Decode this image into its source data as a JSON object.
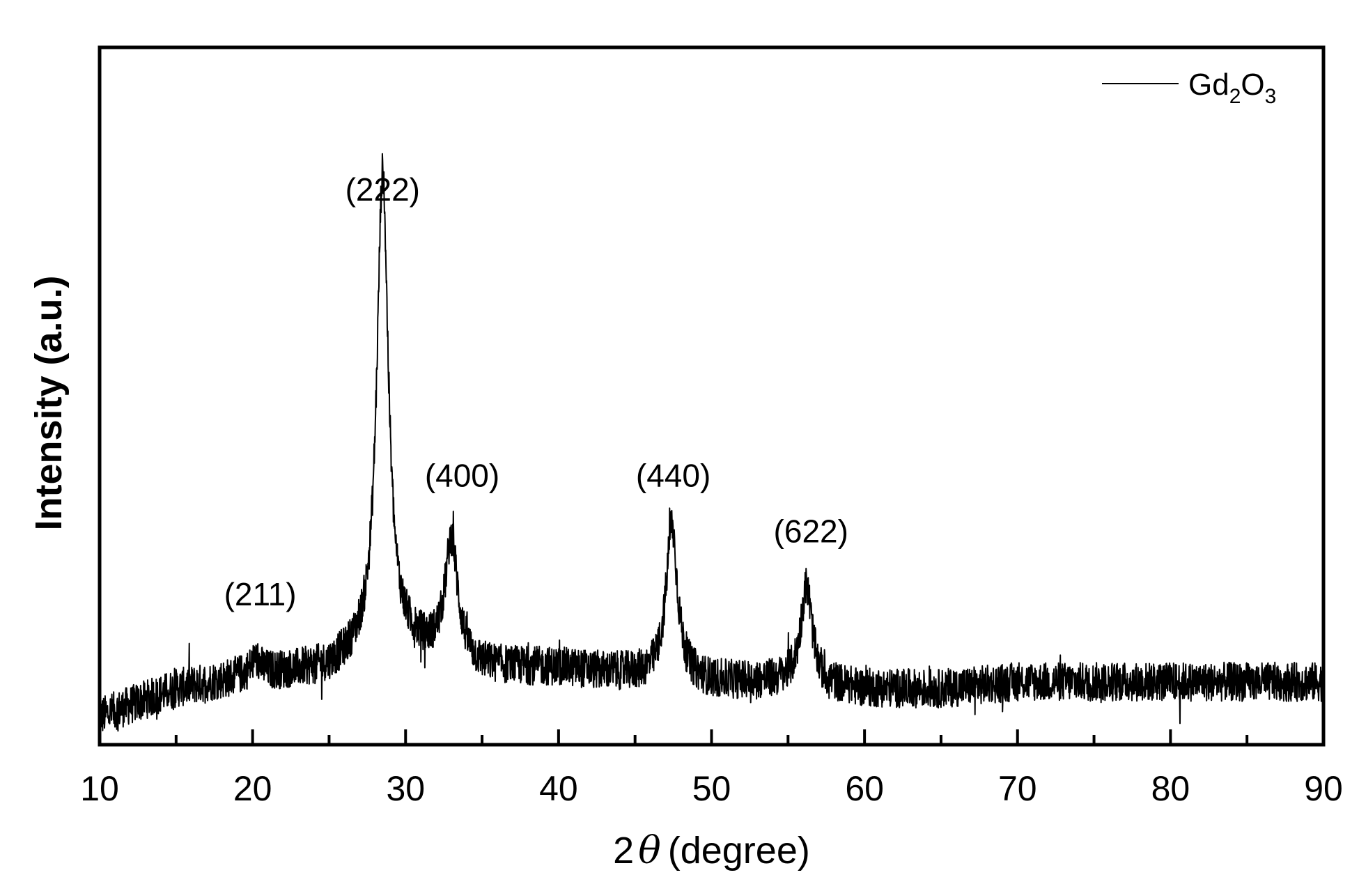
{
  "chart_data": {
    "type": "line",
    "xlabel_prefix": "2",
    "xlabel_symbol": "θ",
    "xlabel_suffix": "(degree)",
    "ylabel": "Intensity (a.u.)",
    "xlim": [
      10,
      90
    ],
    "ylim": [
      0,
      100
    ],
    "x_ticks": [
      "10",
      "20",
      "30",
      "40",
      "50",
      "60",
      "70",
      "80",
      "90"
    ],
    "minor_tick_step": 5,
    "y_ticks_shown": false,
    "grid": false,
    "legend": {
      "position": "top-right",
      "label_parts": [
        "Gd",
        "2",
        "O",
        "3"
      ]
    },
    "series": [
      {
        "name": "Gd2O3",
        "color": "#000000",
        "baseline": [
          [
            10,
            4
          ],
          [
            15,
            8
          ],
          [
            20,
            10
          ],
          [
            25,
            11
          ],
          [
            28,
            14
          ],
          [
            30,
            14
          ],
          [
            35,
            11
          ],
          [
            40,
            11
          ],
          [
            45,
            10
          ],
          [
            50,
            9
          ],
          [
            55,
            9
          ],
          [
            60,
            8
          ],
          [
            65,
            8
          ],
          [
            70,
            9
          ],
          [
            75,
            9
          ],
          [
            80,
            9
          ],
          [
            85,
            9
          ],
          [
            90,
            9
          ]
        ],
        "peaks": [
          {
            "x": 20.2,
            "height": 2,
            "width": 0.4
          },
          {
            "x": 28.5,
            "height": 68,
            "width": 0.45
          },
          {
            "x": 33.0,
            "height": 17,
            "width": 0.5
          },
          {
            "x": 47.4,
            "height": 22,
            "width": 0.45
          },
          {
            "x": 56.2,
            "height": 14,
            "width": 0.45
          }
        ],
        "noise_amplitude": 2.8
      }
    ],
    "annotations": [
      {
        "text": "(211)",
        "x": 20.5,
        "y": 20
      },
      {
        "text": "(222)",
        "x": 28.5,
        "y": 78
      },
      {
        "text": "(400)",
        "x": 33.7,
        "y": 37
      },
      {
        "text": "(440)",
        "x": 47.5,
        "y": 37
      },
      {
        "text": "(622)",
        "x": 56.5,
        "y": 29
      }
    ]
  }
}
